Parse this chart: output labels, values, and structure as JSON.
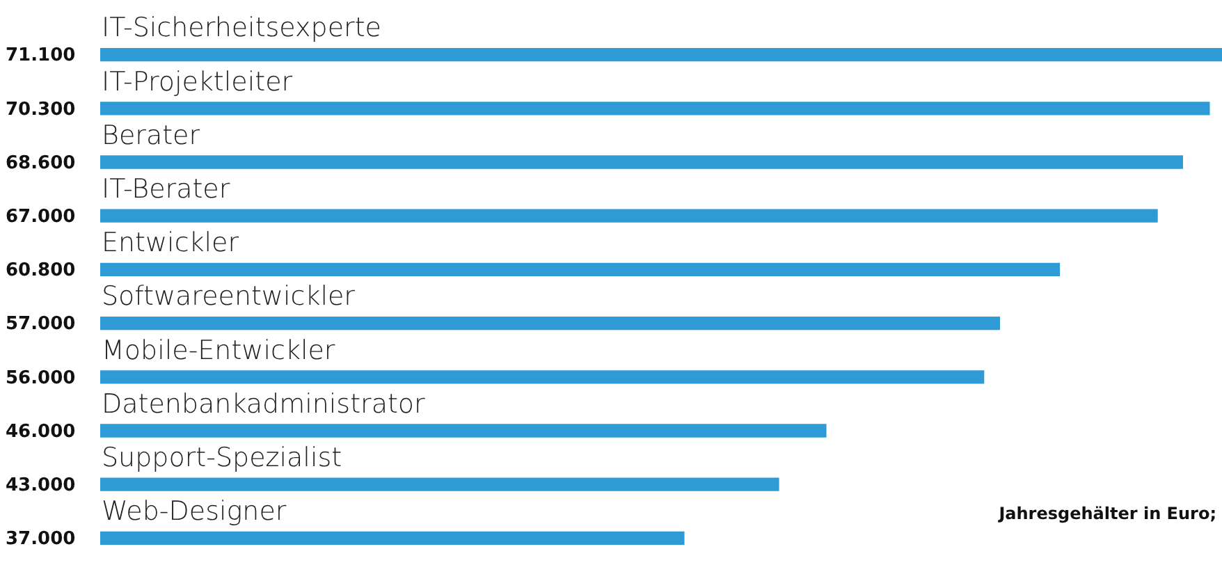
{
  "chart_data": {
    "type": "bar",
    "orientation": "horizontal",
    "categories": [
      "IT-Sicherheitsexperte",
      "IT-Projektleiter",
      "Berater",
      "IT-Berater",
      "Entwickler",
      "Softwareentwickler",
      "Mobile-Entwickler",
      "Datenbankadministrator",
      "Support-Spezialist",
      "Web-Designer"
    ],
    "values": [
      71100,
      70300,
      68600,
      67000,
      60800,
      57000,
      56000,
      46000,
      43000,
      37000
    ],
    "value_labels": [
      "71.100",
      "70.300",
      "68.600",
      "67.000",
      "60.800",
      "57.000",
      "56.000",
      "46.000",
      "43.000",
      "37.000"
    ],
    "color": "#2e9ad6",
    "xlim": [
      0,
      71100
    ],
    "legend": false,
    "annotations": [
      "Jahresgehälter in Euro;"
    ]
  }
}
